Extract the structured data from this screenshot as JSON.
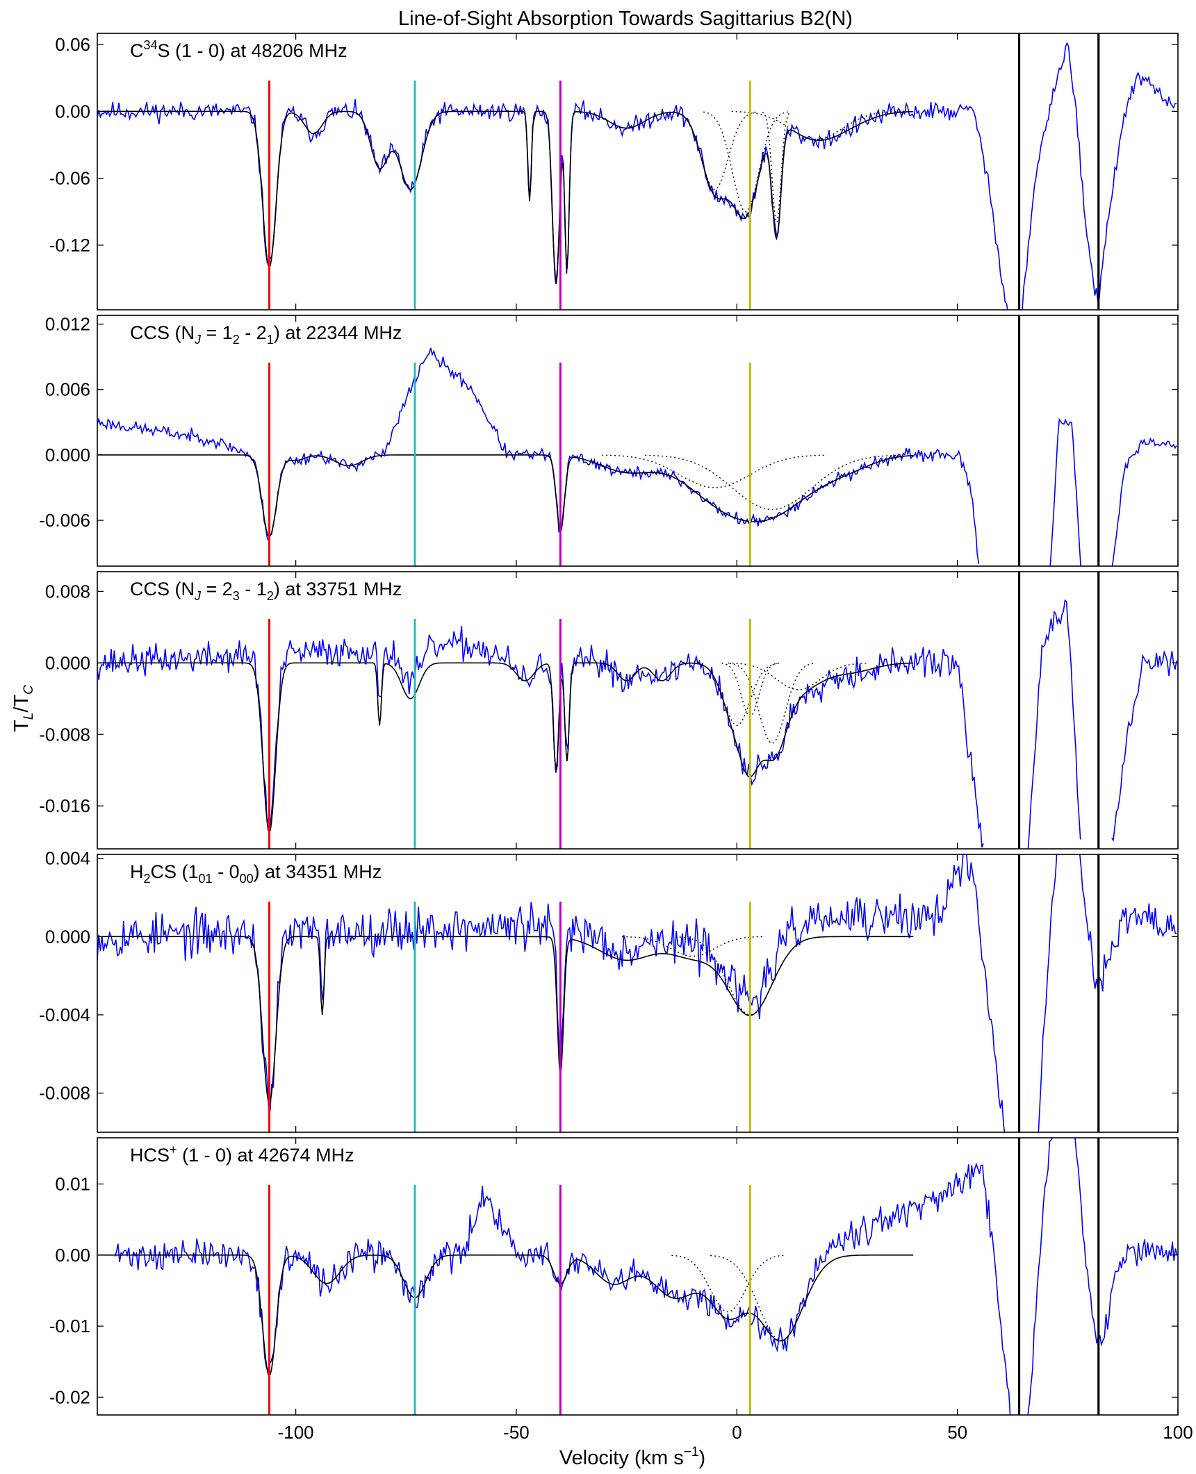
{
  "title": "Line-of-Sight Absorption Towards Sagittarius B2(N)",
  "xlabel": "Velocity (km s",
  "xlabel_sup": "−1",
  "xlabel_close": ")",
  "ylabel": "T",
  "ylabel_sub1": "L",
  "ylabel_mid": "/T",
  "ylabel_sub2": "C",
  "colors": {
    "spectrum": "#0000ff",
    "fit": "#000000",
    "red_marker": "#ff0000",
    "cyan_marker": "#1fbfbf",
    "magenta_marker": "#c000c0",
    "yellow_marker": "#bfbf00",
    "black_marker": "#000000"
  },
  "chart_data": {
    "type": "line",
    "xlim": [
      -145,
      100
    ],
    "xticks": [
      -100,
      -50,
      0,
      50,
      100
    ],
    "xtick_labels": [
      "-100",
      "-50",
      "0",
      "50",
      "100"
    ],
    "markers": [
      {
        "x": -106,
        "color": "#ff0000"
      },
      {
        "x": -73,
        "color": "#1fbfbf"
      },
      {
        "x": -40,
        "color": "#c000c0"
      },
      {
        "x": 3,
        "color": "#bfbf00"
      },
      {
        "x": 64,
        "color": "#000000",
        "full": true
      },
      {
        "x": 82,
        "color": "#000000",
        "full": true
      }
    ],
    "panels": [
      {
        "label": "C",
        "label_sup": "34",
        "label_rest": "S (1 - 0) at 48206 MHz",
        "ylim": [
          -0.178,
          0.07
        ],
        "yticks": [
          0.06,
          0.0,
          -0.06,
          -0.12
        ],
        "ytick_labels": [
          "0.06",
          "0.00",
          "-0.06",
          "-0.12"
        ],
        "noise": 0.006,
        "seed": 11,
        "fit_end": 40,
        "emission": [],
        "dips": [
          [
            -106,
            -0.14,
            1.5
          ],
          [
            -96,
            -0.02,
            2
          ],
          [
            -81,
            -0.05,
            2
          ],
          [
            -74,
            -0.07,
            2.5
          ],
          [
            -47,
            -0.08,
            0.4
          ],
          [
            -41,
            -0.155,
            0.8
          ],
          [
            -38.5,
            -0.14,
            0.5
          ],
          [
            -25,
            -0.015,
            4
          ],
          [
            -5,
            -0.07,
            3
          ],
          [
            2,
            -0.09,
            3
          ],
          [
            9,
            -0.1,
            1
          ],
          [
            18,
            -0.025,
            6
          ],
          [
            27,
            -0.005,
            5
          ]
        ],
        "edge": [
          [
            54,
            0.0
          ],
          [
            58,
            -0.09
          ],
          [
            62,
            -0.2
          ]
        ],
        "right_segments": [
          [
            [
              64,
              -0.2
            ],
            [
              68,
              -0.05
            ],
            [
              72,
              0.02
            ],
            [
              75,
              0.06
            ],
            [
              77,
              0.0
            ],
            [
              79,
              -0.1
            ],
            [
              81,
              -0.16
            ],
            [
              82,
              -0.17
            ],
            [
              84,
              -0.1
            ],
            [
              88,
              0.0
            ],
            [
              91,
              0.03
            ],
            [
              95,
              0.02
            ],
            [
              100,
              0.0
            ]
          ]
        ]
      },
      {
        "label": "CCS (N",
        "label_sub": "J",
        "label_rest": " = 1",
        "label_sub2": "2",
        "label_rest2": " - 2",
        "label_sub3": "1",
        "label_rest3": ") at 22344 MHz",
        "ylim": [
          -0.0102,
          0.0128
        ],
        "yticks": [
          0.012,
          0.006,
          0.0,
          -0.006
        ],
        "ytick_labels": [
          "0.012",
          "0.006",
          "0.000",
          "-0.006"
        ],
        "noise": 0.0004,
        "seed": 23,
        "fit_end": 40,
        "emission": [
          [
            -145,
            0.003
          ],
          [
            -120,
            0.0015
          ],
          [
            -110,
            0.0
          ],
          [
            -80,
            0.0
          ],
          [
            -74,
            0.006
          ],
          [
            -70,
            0.0095
          ],
          [
            -60,
            0.006
          ],
          [
            -52,
            0.0
          ],
          [
            40,
            0.0
          ]
        ],
        "dips": [
          [
            -106,
            -0.0075,
            1.6
          ],
          [
            -100,
            -0.0005,
            2
          ],
          [
            -88,
            -0.001,
            3
          ],
          [
            -40,
            -0.007,
            0.9
          ],
          [
            -25,
            -0.0015,
            6
          ],
          [
            -5,
            -0.003,
            8
          ],
          [
            8,
            -0.005,
            9
          ],
          [
            25,
            -0.001,
            6
          ]
        ],
        "edge": [
          [
            50,
            0.0
          ],
          [
            53,
            -0.003
          ],
          [
            55,
            -0.0105
          ]
        ],
        "right_segments": [
          [
            [
              71,
              -0.0105
            ],
            [
              73,
              0.003
            ],
            [
              76,
              0.003
            ],
            [
              78,
              -0.0105
            ]
          ],
          [
            [
              85,
              -0.0105
            ],
            [
              88,
              -0.001
            ],
            [
              92,
              0.001
            ],
            [
              100,
              0.001
            ]
          ]
        ]
      },
      {
        "label": "CCS (N",
        "label_sub": "J",
        "label_rest": " = 2",
        "label_sub2": "3",
        "label_rest2": " - 1",
        "label_sub3": "2",
        "label_rest3": ") at 33751 MHz",
        "ylim": [
          -0.0208,
          0.0102
        ],
        "yticks": [
          0.008,
          0.0,
          -0.008,
          -0.016
        ],
        "ytick_labels": [
          "0.008",
          "0.000",
          "-0.008",
          "-0.016"
        ],
        "noise": 0.0012,
        "seed": 37,
        "fit_end": 40,
        "emission": [
          [
            -145,
            0.0
          ],
          [
            -60,
            0.002
          ],
          [
            -50,
            0.0
          ],
          [
            40,
            0.0
          ]
        ],
        "dips": [
          [
            -106,
            -0.019,
            1.4
          ],
          [
            -81,
            -0.007,
            0.4
          ],
          [
            -74,
            -0.004,
            2
          ],
          [
            -48,
            -0.002,
            2
          ],
          [
            -41,
            -0.012,
            0.6
          ],
          [
            -38.5,
            -0.011,
            0.5
          ],
          [
            -25,
            -0.002,
            2
          ],
          [
            -17,
            -0.002,
            2
          ],
          [
            0,
            -0.007,
            3
          ],
          [
            3,
            -0.006,
            2
          ],
          [
            8,
            -0.009,
            3
          ],
          [
            14,
            -0.003,
            5
          ],
          [
            26,
            -0.001,
            5
          ]
        ],
        "edge": [
          [
            50,
            0.0
          ],
          [
            54,
            -0.015
          ],
          [
            56,
            -0.021
          ]
        ],
        "right_segments": [
          [
            [
              66,
              -0.021
            ],
            [
              69,
              0.001
            ],
            [
              72,
              0.005
            ],
            [
              75,
              0.006
            ],
            [
              78,
              -0.021
            ]
          ],
          [
            [
              85,
              -0.021
            ],
            [
              88,
              -0.01
            ],
            [
              92,
              0.0
            ],
            [
              100,
              0.0
            ]
          ]
        ]
      },
      {
        "label": "H",
        "label_sub": "2",
        "label_rest": "CS (1",
        "label_sub2": "01",
        "label_rest2": " - 0",
        "label_sub3": "00",
        "label_rest3": ") at 34351 MHz",
        "ylim": [
          -0.01,
          0.0042
        ],
        "yticks": [
          0.004,
          0.0,
          -0.004,
          -0.008
        ],
        "ytick_labels": [
          "0.004",
          "0.000",
          "-0.004",
          "-0.008"
        ],
        "noise": 0.0008,
        "seed": 53,
        "fit_end": 40,
        "emission": [
          [
            -145,
            0.0
          ],
          [
            45,
            0.001
          ],
          [
            52,
            0.004
          ],
          [
            55,
            0.001
          ]
        ],
        "dips": [
          [
            -106,
            -0.0085,
            1.5
          ],
          [
            -94,
            -0.004,
            0.4
          ],
          [
            -40,
            -0.007,
            0.7
          ],
          [
            -25,
            -0.0012,
            6
          ],
          [
            -10,
            -0.001,
            5
          ],
          [
            3,
            -0.004,
            5
          ]
        ],
        "edge": [
          [
            55,
            0.0
          ],
          [
            58,
            -0.005
          ],
          [
            61,
            -0.011
          ]
        ],
        "right_segments": [
          [
            [
              68,
              -0.011
            ],
            [
              71,
              0.0
            ],
            [
              73,
              0.006
            ]
          ],
          [
            [
              77,
              0.005
            ],
            [
              80,
              0.0
            ],
            [
              82,
              -0.003
            ],
            [
              84,
              -0.001
            ],
            [
              88,
              0.001
            ],
            [
              93,
              0.001
            ],
            [
              100,
              0.0
            ]
          ]
        ]
      },
      {
        "label": "HCS",
        "label_sup": "+",
        "label_rest": " (1 - 0) at 42674 MHz",
        "ylim": [
          -0.0225,
          0.0165
        ],
        "yticks": [
          0.01,
          0.0,
          -0.01,
          -0.02
        ],
        "ytick_labels": [
          "0.01",
          "0.00",
          "-0.01",
          "-0.02"
        ],
        "noise": 0.0015,
        "seed": 71,
        "fit_end": 40,
        "x_start": -141,
        "emission": [
          [
            -141,
            0.0
          ],
          [
            -62,
            0.0
          ],
          [
            -57,
            0.009
          ],
          [
            -53,
            0.004
          ],
          [
            -50,
            0.0
          ],
          [
            10,
            0.0
          ],
          [
            30,
            0.004
          ],
          [
            50,
            0.009
          ],
          [
            55,
            0.012
          ]
        ],
        "dips": [
          [
            -106,
            -0.017,
            1.5
          ],
          [
            -93,
            -0.004,
            3
          ],
          [
            -73,
            -0.006,
            2.5
          ],
          [
            -40,
            -0.004,
            1.5
          ],
          [
            -28,
            -0.004,
            4
          ],
          [
            -14,
            -0.006,
            5
          ],
          [
            -2,
            -0.008,
            4
          ],
          [
            10,
            -0.012,
            5
          ]
        ],
        "edge": [
          [
            56,
            0.012
          ],
          [
            59,
            -0.005
          ],
          [
            62,
            -0.023
          ]
        ],
        "right_segments": [
          [
            [
              66,
              -0.023
            ],
            [
              70,
              0.01
            ],
            [
              72,
              0.02
            ]
          ],
          [
            [
              76,
              0.02
            ],
            [
              79,
              0.0
            ],
            [
              81,
              -0.01
            ],
            [
              83,
              -0.013
            ],
            [
              85,
              -0.005
            ],
            [
              88,
              0.0
            ],
            [
              95,
              0.001
            ],
            [
              100,
              0.0
            ]
          ]
        ]
      }
    ]
  }
}
